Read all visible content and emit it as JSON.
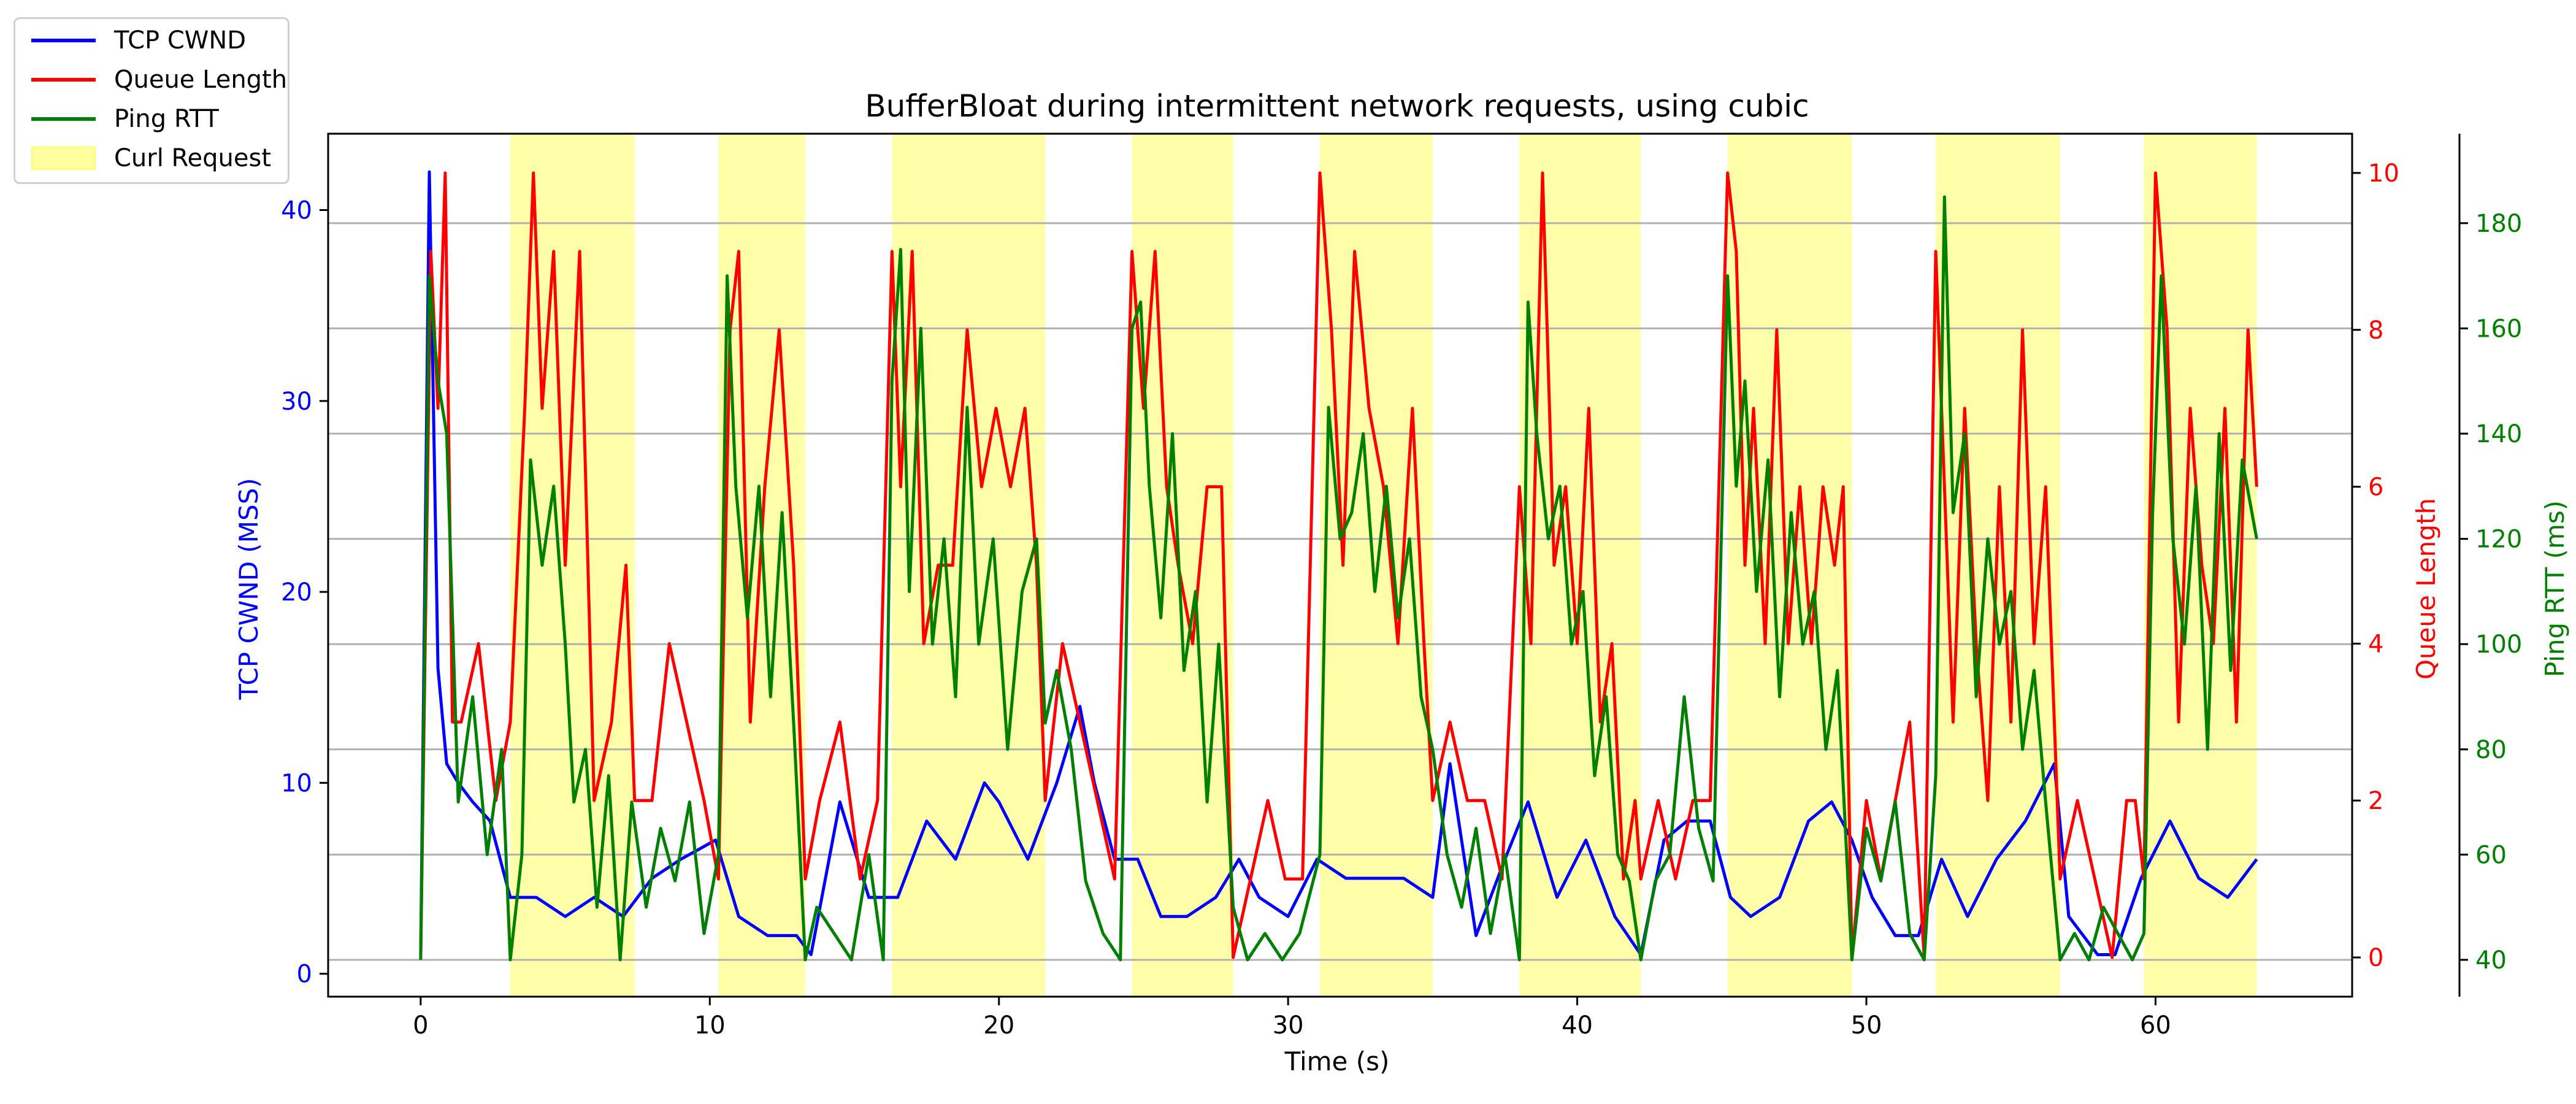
{
  "chart_data": {
    "type": "line",
    "title": "BufferBloat during intermittent network requests, using cubic",
    "xlabel": "Time (s)",
    "xlim": [
      -3.2,
      66.8
    ],
    "xticks": [
      0,
      10,
      20,
      30,
      40,
      50,
      60
    ],
    "axes": {
      "cwnd": {
        "label": "TCP CWND (MSS)",
        "color": "#0000ff",
        "ylim": [
          -1.2,
          44
        ],
        "ticks": [
          0,
          10,
          20,
          30,
          40
        ]
      },
      "queue": {
        "label": "Queue Length",
        "color": "#ff0000",
        "ylim": [
          -0.5,
          10.5
        ],
        "ticks": [
          0,
          2,
          4,
          6,
          8,
          10
        ]
      },
      "rtt": {
        "label": "Ping RTT (ms)",
        "color": "#008000",
        "ylim": [
          33,
          197
        ],
        "ticks": [
          40,
          60,
          80,
          100,
          120,
          140,
          160,
          180
        ]
      }
    },
    "grid": "horizontal",
    "legend": {
      "placement": "upper-left-outside",
      "entries": [
        {
          "name": "TCP CWND",
          "kind": "line",
          "color": "#0000ff"
        },
        {
          "name": "Queue Length",
          "kind": "line",
          "color": "#ff0000"
        },
        {
          "name": "Ping RTT",
          "kind": "line",
          "color": "#008000"
        },
        {
          "name": "Curl Request",
          "kind": "patch",
          "color": "#ffffa0"
        }
      ]
    },
    "curl_requests": [
      [
        3.1,
        7.4
      ],
      [
        10.3,
        13.3
      ],
      [
        16.3,
        21.6
      ],
      [
        24.6,
        28.1
      ],
      [
        31.1,
        35.0
      ],
      [
        38.0,
        42.2
      ],
      [
        45.2,
        49.5
      ],
      [
        52.4,
        56.7
      ],
      [
        59.6,
        63.5
      ]
    ],
    "series": [
      {
        "name": "TCP CWND",
        "axis": "cwnd",
        "x": [
          0,
          0.3,
          0.6,
          0.9,
          1.3,
          1.8,
          2.4,
          3.1,
          4.0,
          5.0,
          6.0,
          7.0,
          8.0,
          9.0,
          10.2,
          11.0,
          12.0,
          13.0,
          13.5,
          14.5,
          15.5,
          16.5,
          17.5,
          18.5,
          19.5,
          20.0,
          21.0,
          22.0,
          22.8,
          23.3,
          24.0,
          24.8,
          25.6,
          26.5,
          27.5,
          28.3,
          29.0,
          30.0,
          31.0,
          32.0,
          33.0,
          34.0,
          35.0,
          35.6,
          36.5,
          37.5,
          38.3,
          39.3,
          40.3,
          41.3,
          42.2,
          43.0,
          43.8,
          44.6,
          45.3,
          46.0,
          47.0,
          48.0,
          48.8,
          49.5,
          50.2,
          51.0,
          51.8,
          52.6,
          53.5,
          54.5,
          55.5,
          56.5,
          57.0,
          58.0,
          58.6,
          59.5,
          60.5,
          61.5,
          62.5,
          63.5
        ],
        "values": [
          1,
          42,
          16,
          11,
          10,
          9,
          8,
          4,
          4,
          3,
          4,
          3,
          5,
          6,
          7,
          3,
          2,
          2,
          1,
          9,
          4,
          4,
          8,
          6,
          10,
          9,
          6,
          10,
          14,
          10,
          6,
          6,
          3,
          3,
          4,
          6,
          4,
          3,
          6,
          5,
          5,
          5,
          4,
          11,
          2,
          6,
          9,
          4,
          7,
          3,
          1,
          7,
          8,
          8,
          4,
          3,
          4,
          8,
          9,
          7,
          4,
          2,
          2,
          6,
          3,
          6,
          8,
          11,
          3,
          1,
          1,
          5,
          8,
          5,
          4,
          6
        ]
      },
      {
        "name": "Queue Length",
        "axis": "queue",
        "x": [
          0,
          0.35,
          0.6,
          0.85,
          1.1,
          1.4,
          2.0,
          2.6,
          3.1,
          3.6,
          3.9,
          4.2,
          4.6,
          5.0,
          5.5,
          6.0,
          6.6,
          7.1,
          7.4,
          8.0,
          8.6,
          9.2,
          9.8,
          10.3,
          10.7,
          11.0,
          11.4,
          11.9,
          12.4,
          12.9,
          13.3,
          13.8,
          14.5,
          15.2,
          15.8,
          16.3,
          16.6,
          17.0,
          17.4,
          17.9,
          18.4,
          18.9,
          19.4,
          19.9,
          20.4,
          20.9,
          21.3,
          21.6,
          22.2,
          22.8,
          23.4,
          24.0,
          24.6,
          25.0,
          25.4,
          25.8,
          26.2,
          26.7,
          27.2,
          27.7,
          28.1,
          28.7,
          29.3,
          29.9,
          30.5,
          31.1,
          31.5,
          31.9,
          32.3,
          32.8,
          33.3,
          33.8,
          34.3,
          34.7,
          35.0,
          35.6,
          36.2,
          36.8,
          37.4,
          38.0,
          38.4,
          38.8,
          39.2,
          39.6,
          40.0,
          40.4,
          40.8,
          41.2,
          41.6,
          42.0,
          42.2,
          42.8,
          43.4,
          44.0,
          44.6,
          45.2,
          45.5,
          45.8,
          46.1,
          46.5,
          46.9,
          47.3,
          47.7,
          48.1,
          48.5,
          48.9,
          49.2,
          49.5,
          50.0,
          50.5,
          51.0,
          51.5,
          52.0,
          52.4,
          52.7,
          53.0,
          53.4,
          53.8,
          54.2,
          54.6,
          55.0,
          55.4,
          55.8,
          56.2,
          56.7,
          57.3,
          57.9,
          58.5,
          59.0,
          59.3,
          59.6,
          60.0,
          60.4,
          60.8,
          61.2,
          61.6,
          62.0,
          62.4,
          62.8,
          63.2,
          63.5
        ],
        "values": [
          0,
          9,
          7,
          10,
          3,
          3,
          4,
          2,
          3,
          7,
          10,
          7,
          9,
          5,
          9,
          2,
          3,
          5,
          2,
          2,
          4,
          3,
          2,
          1,
          8,
          9,
          3,
          6,
          8,
          5,
          1,
          2,
          3,
          1,
          2,
          9,
          6,
          9,
          4,
          5,
          5,
          8,
          6,
          7,
          6,
          7,
          5,
          2,
          4,
          3,
          2,
          1,
          9,
          7,
          9,
          6,
          5,
          4,
          6,
          6,
          0,
          1,
          2,
          1,
          1,
          10,
          8,
          5,
          9,
          7,
          6,
          4,
          7,
          4,
          2,
          3,
          2,
          2,
          1,
          6,
          4,
          10,
          5,
          6,
          4,
          7,
          3,
          4,
          1,
          2,
          1,
          2,
          1,
          2,
          2,
          10,
          9,
          5,
          7,
          4,
          8,
          4,
          6,
          4,
          6,
          5,
          6,
          0,
          2,
          1,
          2,
          3,
          0,
          9,
          6,
          3,
          7,
          4,
          2,
          6,
          3,
          8,
          4,
          6,
          1,
          2,
          1,
          0,
          2,
          2,
          1,
          10,
          8,
          3,
          7,
          5,
          4,
          7,
          3,
          8,
          6
        ]
      },
      {
        "name": "Ping RTT",
        "axis": "rtt",
        "x": [
          0,
          0.3,
          0.6,
          0.9,
          1.3,
          1.8,
          2.3,
          2.8,
          3.1,
          3.5,
          3.8,
          4.2,
          4.6,
          5.0,
          5.3,
          5.7,
          6.1,
          6.5,
          6.9,
          7.3,
          7.8,
          8.3,
          8.8,
          9.3,
          9.8,
          10.3,
          10.6,
          10.9,
          11.3,
          11.7,
          12.1,
          12.5,
          12.9,
          13.3,
          13.7,
          14.3,
          14.9,
          15.5,
          16.0,
          16.3,
          16.6,
          16.9,
          17.3,
          17.7,
          18.1,
          18.5,
          18.9,
          19.3,
          19.8,
          20.3,
          20.8,
          21.3,
          21.6,
          22.0,
          22.5,
          23.0,
          23.6,
          24.2,
          24.6,
          24.9,
          25.2,
          25.6,
          26.0,
          26.4,
          26.8,
          27.2,
          27.6,
          28.1,
          28.6,
          29.2,
          29.8,
          30.4,
          31.1,
          31.4,
          31.8,
          32.2,
          32.6,
          33.0,
          33.4,
          33.8,
          34.2,
          34.6,
          35.0,
          35.5,
          36.0,
          36.5,
          37.0,
          37.5,
          38.0,
          38.3,
          38.6,
          39.0,
          39.4,
          39.8,
          40.2,
          40.6,
          41.0,
          41.4,
          41.8,
          42.2,
          42.7,
          43.2,
          43.7,
          44.2,
          44.7,
          45.2,
          45.5,
          45.8,
          46.2,
          46.6,
          47.0,
          47.4,
          47.8,
          48.2,
          48.6,
          49.0,
          49.5,
          50.0,
          50.5,
          51.0,
          51.5,
          52.0,
          52.4,
          52.7,
          53.0,
          53.4,
          53.8,
          54.2,
          54.6,
          55.0,
          55.4,
          55.8,
          56.2,
          56.7,
          57.2,
          57.7,
          58.2,
          58.7,
          59.2,
          59.6,
          59.9,
          60.2,
          60.6,
          61.0,
          61.4,
          61.8,
          62.2,
          62.6,
          63.0,
          63.5
        ],
        "values": [
          40,
          170,
          150,
          140,
          70,
          90,
          60,
          80,
          40,
          60,
          135,
          115,
          130,
          100,
          70,
          80,
          50,
          75,
          40,
          70,
          50,
          65,
          55,
          70,
          45,
          60,
          170,
          130,
          105,
          130,
          90,
          125,
          85,
          40,
          50,
          45,
          40,
          60,
          40,
          150,
          175,
          110,
          160,
          100,
          120,
          90,
          145,
          100,
          120,
          80,
          110,
          120,
          85,
          95,
          80,
          55,
          45,
          40,
          160,
          165,
          130,
          105,
          140,
          95,
          110,
          70,
          100,
          50,
          40,
          45,
          40,
          45,
          60,
          145,
          120,
          125,
          140,
          110,
          130,
          105,
          120,
          90,
          80,
          60,
          50,
          65,
          45,
          60,
          40,
          165,
          140,
          120,
          130,
          100,
          110,
          75,
          90,
          60,
          55,
          40,
          55,
          60,
          90,
          65,
          55,
          170,
          130,
          150,
          110,
          135,
          90,
          125,
          100,
          110,
          80,
          95,
          40,
          65,
          55,
          70,
          45,
          40,
          75,
          185,
          125,
          140,
          90,
          120,
          100,
          110,
          80,
          95,
          70,
          40,
          45,
          40,
          50,
          45,
          40,
          45,
          125,
          170,
          120,
          100,
          130,
          80,
          140,
          95,
          135,
          120
        ]
      }
    ]
  }
}
